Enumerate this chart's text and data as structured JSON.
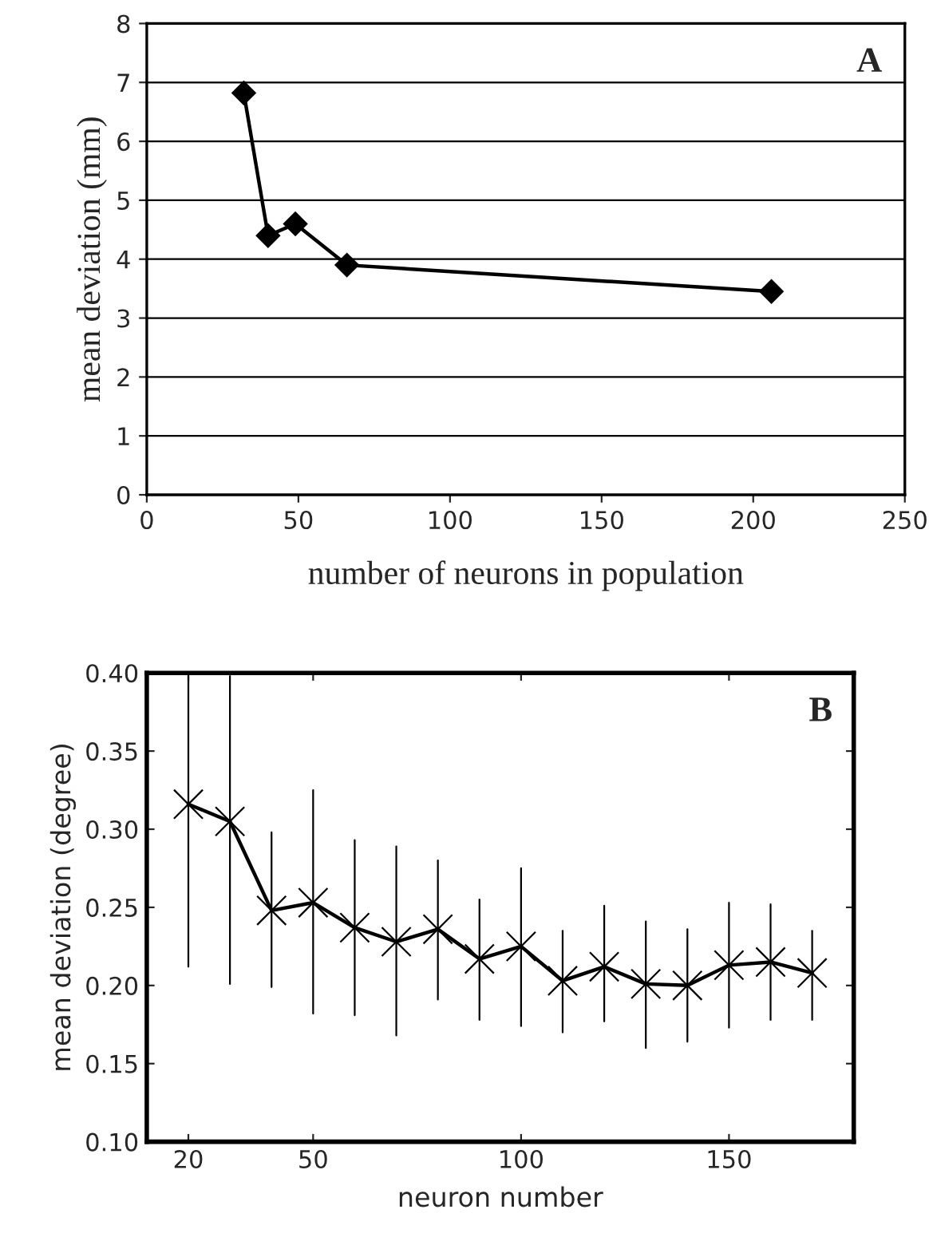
{
  "chart_data": [
    {
      "type": "line",
      "xlabel": "number of neurons in population",
      "ylabel": "mean deviation (mm)",
      "annotations": [
        "A"
      ],
      "x": [
        32,
        40,
        49,
        66,
        206
      ],
      "series": [
        {
          "color": "#000000",
          "values": [
            6.82,
            4.4,
            4.6,
            3.9,
            3.45
          ]
        }
      ],
      "xlim": [
        0,
        250
      ],
      "xticks": [
        0,
        50,
        100,
        150,
        200,
        250
      ],
      "ylim": [
        0,
        8
      ],
      "yticks": [
        0,
        1,
        2,
        3,
        4,
        5,
        6,
        7,
        8
      ],
      "grid": "y",
      "marker": "diamond",
      "line_style": "solid"
    },
    {
      "type": "line",
      "xlabel": "neuron number",
      "ylabel": "mean deviation (degree)",
      "annotations": [
        "B"
      ],
      "x": [
        20,
        30,
        40,
        50,
        60,
        70,
        80,
        90,
        100,
        110,
        120,
        130,
        140,
        150,
        160,
        170
      ],
      "series": [
        {
          "color": "#000000",
          "values": [
            0.316,
            0.305,
            0.248,
            0.253,
            0.237,
            0.228,
            0.236,
            0.217,
            0.225,
            0.203,
            0.212,
            0.201,
            0.2,
            0.213,
            0.215,
            0.208
          ],
          "errors": [
            [
              0.212,
              0.398
            ],
            [
              0.201,
              0.398
            ],
            [
              0.199,
              0.298
            ],
            [
              0.182,
              0.325
            ],
            [
              0.181,
              0.293
            ],
            [
              0.168,
              0.289
            ],
            [
              0.191,
              0.28
            ],
            [
              0.178,
              0.255
            ],
            [
              0.174,
              0.275
            ],
            [
              0.17,
              0.235
            ],
            [
              0.177,
              0.251
            ],
            [
              0.16,
              0.241
            ],
            [
              0.164,
              0.236
            ],
            [
              0.173,
              0.253
            ],
            [
              0.178,
              0.252
            ],
            [
              0.178,
              0.235
            ]
          ]
        }
      ],
      "xlim": [
        10,
        180
      ],
      "xticks": [
        20,
        50,
        100,
        150
      ],
      "ylim": [
        0.1,
        0.4
      ],
      "yticks": [
        {
          "value": 0.1,
          "label": "0.10"
        },
        {
          "value": 0.15,
          "label": "0.15"
        },
        {
          "value": 0.2,
          "label": "0.20"
        },
        {
          "value": 0.25,
          "label": "0.25"
        },
        {
          "value": 0.3,
          "label": "0.30"
        },
        {
          "value": 0.35,
          "label": "0.35"
        },
        {
          "value": 0.4,
          "label": "0.40"
        }
      ],
      "grid": false,
      "marker": "cross",
      "line_style": "solid"
    }
  ]
}
